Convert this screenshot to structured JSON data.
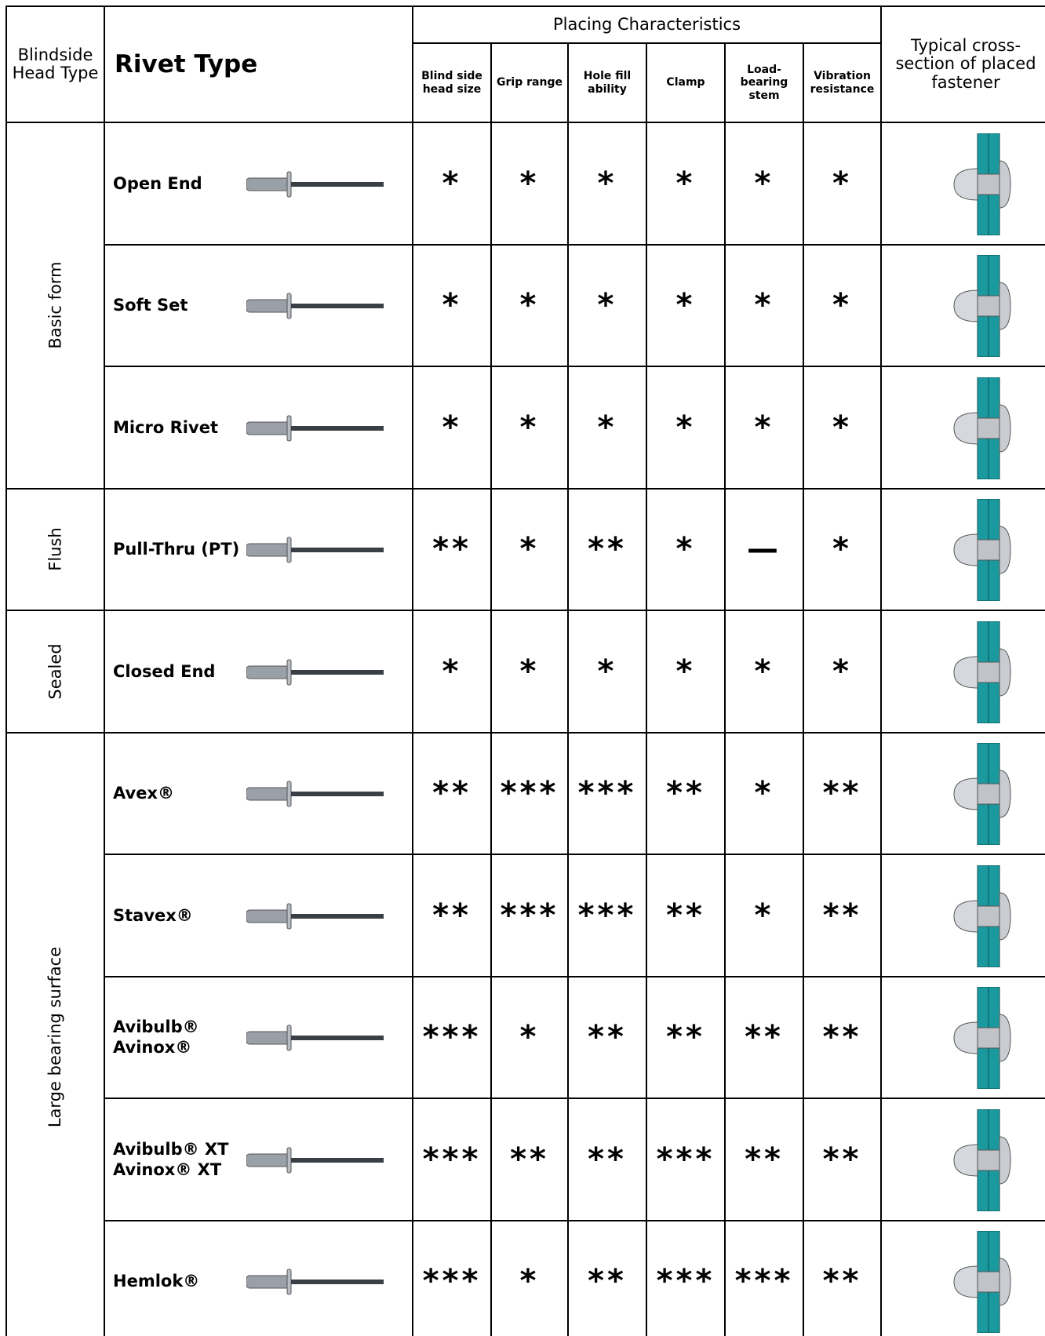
{
  "header": {
    "head_type": "Blindside Head Type",
    "rivet_type": "Rivet Type",
    "placing": "Placing Characteristics",
    "columns": [
      "Blind side head size",
      "Grip range",
      "Hole fill ability",
      "Clamp",
      "Load-bearing stem",
      "Vibration resistance"
    ],
    "cross_section": "Typical cross-section of placed fastener"
  },
  "groups": [
    {
      "label": "Basic form",
      "rows": [
        {
          "name": [
            "Open End"
          ],
          "ratings": [
            "*",
            "*",
            "*",
            "*",
            "*",
            "*"
          ]
        },
        {
          "name": [
            "Soft Set"
          ],
          "ratings": [
            "*",
            "*",
            "*",
            "*",
            "*",
            "*"
          ]
        },
        {
          "name": [
            "Micro Rivet"
          ],
          "ratings": [
            "*",
            "*",
            "*",
            "*",
            "*",
            "*"
          ]
        }
      ]
    },
    {
      "label": "Flush",
      "rows": [
        {
          "name": [
            "Pull-Thru (PT)"
          ],
          "ratings": [
            "**",
            "*",
            "**",
            "*",
            "—",
            "*"
          ]
        }
      ]
    },
    {
      "label": "Sealed",
      "rows": [
        {
          "name": [
            "Closed End"
          ],
          "ratings": [
            "*",
            "*",
            "*",
            "*",
            "*",
            "*"
          ]
        }
      ]
    },
    {
      "label": "Large bearing surface",
      "rows": [
        {
          "name": [
            "Avex®"
          ],
          "ratings": [
            "**",
            "***",
            "***",
            "**",
            "*",
            "**"
          ]
        },
        {
          "name": [
            "Stavex®"
          ],
          "ratings": [
            "**",
            "***",
            "***",
            "**",
            "*",
            "**"
          ]
        },
        {
          "name": [
            "Avibulb®",
            "Avinox®"
          ],
          "ratings": [
            "***",
            "*",
            "**",
            "**",
            "**",
            "**"
          ]
        },
        {
          "name": [
            "Avibulb® XT",
            "Avinox® XT"
          ],
          "ratings": [
            "***",
            "**",
            "**",
            "***",
            "**",
            "**"
          ]
        },
        {
          "name": [
            "Hemlok®"
          ],
          "ratings": [
            "***",
            "*",
            "**",
            "***",
            "***",
            "**"
          ]
        }
      ]
    }
  ]
}
